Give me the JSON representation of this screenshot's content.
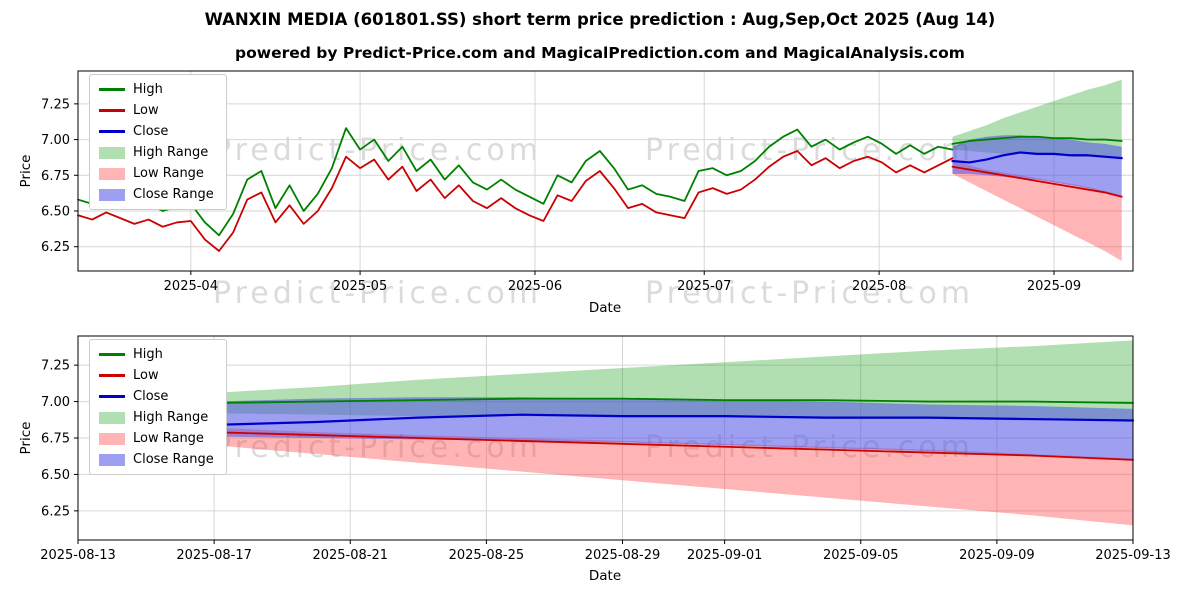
{
  "title": "WANXIN MEDIA (601801.SS) short term price prediction : Aug,Sep,Oct 2025 (Aug 14)",
  "subtitle": "powered by Predict-Price.com and MagicalPrediction.com and MagicalAnalysis.com",
  "watermark": "Predict-Price.com",
  "colors": {
    "high_line": "#008000",
    "low_line": "#cc0000",
    "close_line": "#0000cc",
    "high_range_fill": "rgba(0,150,0,0.30)",
    "low_range_fill": "rgba(255,70,70,0.40)",
    "close_range_fill": "rgba(80,80,230,0.55)",
    "grid": "#d6d6d6",
    "axis": "#000000"
  },
  "legend": [
    {
      "label": "High",
      "swatch": "line",
      "color": "#008000"
    },
    {
      "label": "Low",
      "swatch": "line",
      "color": "#cc0000"
    },
    {
      "label": "Close",
      "swatch": "line",
      "color": "#0000cc"
    },
    {
      "label": "High Range",
      "swatch": "patch",
      "color": "rgba(0,150,0,0.30)"
    },
    {
      "label": "Low Range",
      "swatch": "patch",
      "color": "rgba(255,70,70,0.40)"
    },
    {
      "label": "Close Range",
      "swatch": "patch",
      "color": "rgba(80,80,230,0.55)"
    }
  ],
  "chart_data": {
    "type": "line",
    "top_chart": {
      "xlabel": "Date",
      "ylabel": "Price",
      "ylim": [
        6.08,
        7.48
      ],
      "yticks": [
        6.25,
        6.5,
        6.75,
        7.0,
        7.25
      ],
      "xlim_days": [
        -20,
        167
      ],
      "xticks": [
        {
          "label": "2025-04",
          "day": 0
        },
        {
          "label": "2025-05",
          "day": 30
        },
        {
          "label": "2025-06",
          "day": 61
        },
        {
          "label": "2025-07",
          "day": 91
        },
        {
          "label": "2025-08",
          "day": 122
        },
        {
          "label": "2025-09",
          "day": 153
        }
      ],
      "history": {
        "x_first_day": -20,
        "x_last_day": 135,
        "high": [
          6.58,
          6.55,
          6.6,
          6.56,
          6.52,
          6.55,
          6.5,
          6.53,
          6.55,
          6.42,
          6.33,
          6.48,
          6.72,
          6.78,
          6.52,
          6.68,
          6.5,
          6.62,
          6.8,
          7.08,
          6.93,
          7.0,
          6.85,
          6.95,
          6.78,
          6.86,
          6.72,
          6.82,
          6.7,
          6.65,
          6.72,
          6.65,
          6.6,
          6.55,
          6.75,
          6.7,
          6.85,
          6.92,
          6.8,
          6.65,
          6.68,
          6.62,
          6.6,
          6.57,
          6.78,
          6.8,
          6.75,
          6.78,
          6.85,
          6.95,
          7.02,
          7.07,
          6.95,
          7.0,
          6.93,
          6.98,
          7.02,
          6.97,
          6.9,
          6.96,
          6.9,
          6.95,
          6.93
        ],
        "low": [
          6.47,
          6.44,
          6.49,
          6.45,
          6.41,
          6.44,
          6.39,
          6.42,
          6.43,
          6.3,
          6.22,
          6.35,
          6.58,
          6.63,
          6.42,
          6.54,
          6.41,
          6.5,
          6.66,
          6.88,
          6.8,
          6.86,
          6.72,
          6.81,
          6.64,
          6.72,
          6.59,
          6.68,
          6.57,
          6.52,
          6.59,
          6.52,
          6.47,
          6.43,
          6.61,
          6.57,
          6.71,
          6.78,
          6.66,
          6.52,
          6.55,
          6.49,
          6.47,
          6.45,
          6.63,
          6.66,
          6.62,
          6.65,
          6.72,
          6.81,
          6.88,
          6.92,
          6.82,
          6.87,
          6.8,
          6.85,
          6.88,
          6.84,
          6.77,
          6.82,
          6.77,
          6.82,
          6.87
        ]
      },
      "prediction_day_offset": 134
    },
    "bottom_chart": {
      "xlabel": "Date",
      "ylabel": "Price",
      "ylim": [
        6.05,
        7.45
      ],
      "yticks": [
        6.25,
        6.5,
        6.75,
        7.0,
        7.25
      ],
      "xlim_days": [
        0,
        31
      ],
      "xticks": [
        {
          "label": "2025-08-13",
          "day": 0
        },
        {
          "label": "2025-08-17",
          "day": 4
        },
        {
          "label": "2025-08-21",
          "day": 8
        },
        {
          "label": "2025-08-25",
          "day": 12
        },
        {
          "label": "2025-08-29",
          "day": 16
        },
        {
          "label": "2025-09-01",
          "day": 19
        },
        {
          "label": "2025-09-05",
          "day": 23
        },
        {
          "label": "2025-09-09",
          "day": 27
        },
        {
          "label": "2025-09-13",
          "day": 31
        }
      ]
    },
    "prediction": {
      "days_from_2025_08_13": [
        1,
        4,
        7,
        10,
        13,
        16,
        19,
        22,
        25,
        28,
        31
      ],
      "high": [
        6.97,
        6.99,
        7.0,
        7.01,
        7.02,
        7.02,
        7.01,
        7.01,
        7.0,
        7.0,
        6.99
      ],
      "low": [
        6.81,
        6.79,
        6.77,
        6.75,
        6.73,
        6.71,
        6.69,
        6.67,
        6.65,
        6.63,
        6.6
      ],
      "close": [
        6.85,
        6.84,
        6.86,
        6.89,
        6.91,
        6.9,
        6.9,
        6.89,
        6.89,
        6.88,
        6.87
      ],
      "high_range": {
        "upper": [
          7.02,
          7.06,
          7.1,
          7.15,
          7.19,
          7.23,
          7.27,
          7.31,
          7.35,
          7.38,
          7.42
        ],
        "lower": [
          6.93,
          6.92,
          6.91,
          6.9,
          6.9,
          6.89,
          6.89,
          6.88,
          6.88,
          6.87,
          6.87
        ]
      },
      "close_range": {
        "upper": [
          6.95,
          7.0,
          7.02,
          7.03,
          7.03,
          7.02,
          7.01,
          7.0,
          6.98,
          6.97,
          6.95
        ],
        "lower": [
          6.76,
          6.76,
          6.75,
          6.74,
          6.73,
          6.72,
          6.7,
          6.68,
          6.66,
          6.63,
          6.6
        ]
      },
      "low_range": {
        "upper": [
          6.86,
          6.82,
          6.79,
          6.77,
          6.75,
          6.73,
          6.71,
          6.69,
          6.67,
          6.64,
          6.61
        ],
        "lower": [
          6.76,
          6.7,
          6.64,
          6.58,
          6.52,
          6.46,
          6.4,
          6.34,
          6.28,
          6.22,
          6.15
        ]
      }
    }
  }
}
